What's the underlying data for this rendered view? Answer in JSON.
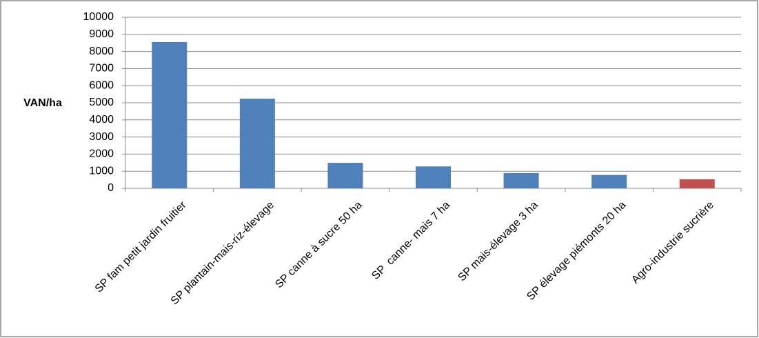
{
  "chart_data": {
    "type": "bar",
    "y_label": "VAN/ha",
    "categories": [
      "SP fam petit jardin fruitier",
      "SP plantain-mais-riz-élevage",
      "SP canne à sucre 50 ha",
      "SP  canne- mais 7 ha",
      "SP mais-élevage 3 ha",
      "SP élevage piémonts 20 ha",
      "Agro-industrie sucrière"
    ],
    "values": [
      8550,
      5240,
      1490,
      1280,
      890,
      780,
      530
    ],
    "colors": [
      "#4f81bd",
      "#4f81bd",
      "#4f81bd",
      "#4f81bd",
      "#4f81bd",
      "#4f81bd",
      "#c0504d"
    ],
    "ylim": [
      0,
      10000
    ],
    "yticks": [
      0,
      1000,
      2000,
      3000,
      4000,
      5000,
      6000,
      7000,
      8000,
      9000,
      10000
    ],
    "grid": true
  }
}
